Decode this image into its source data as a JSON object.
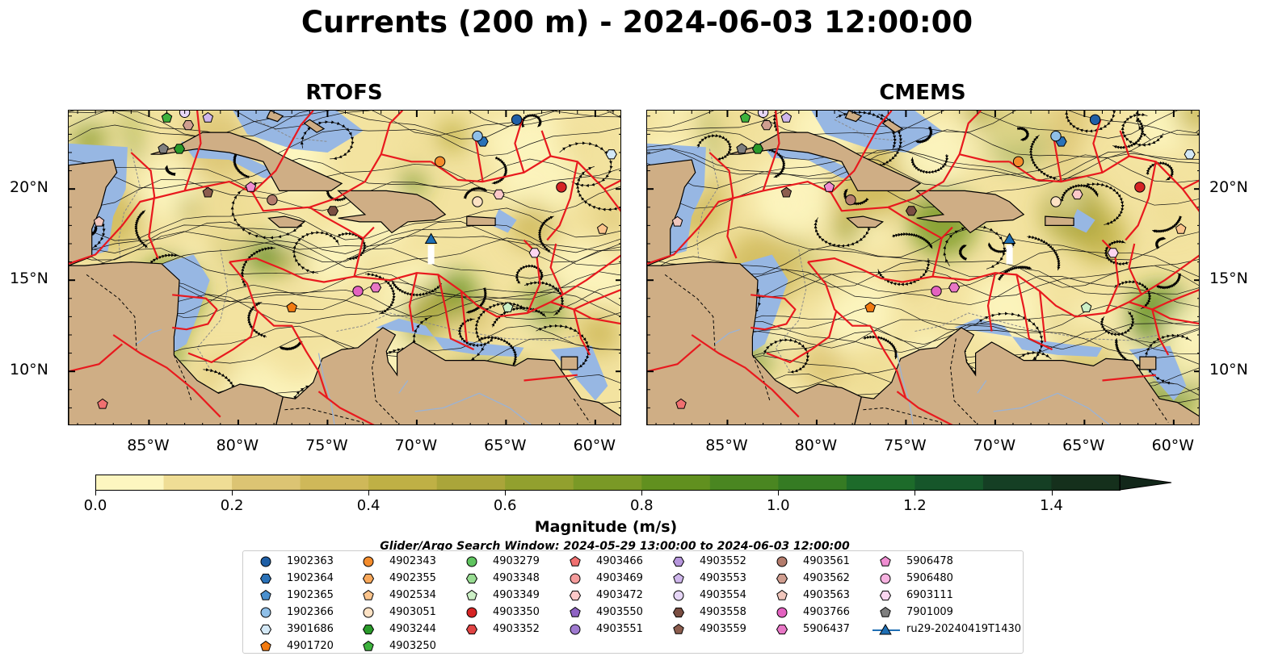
{
  "title": "Currents (200 m) - 2024-06-03 12:00:00",
  "panels": [
    {
      "title": "RTOFS"
    },
    {
      "title": "CMEMS"
    }
  ],
  "axes": {
    "lon_labels": [
      "85°W",
      "80°W",
      "75°W",
      "70°W",
      "65°W",
      "60°W"
    ],
    "lon_values": [
      -85,
      -80,
      -75,
      -70,
      -65,
      -60
    ],
    "lat_labels": [
      "20°N",
      "15°N",
      "10°N"
    ],
    "lat_values": [
      20,
      15,
      10
    ],
    "lon_range": [
      -89.5,
      -58.5
    ],
    "lat_range": [
      7,
      24.3
    ]
  },
  "colorbar": {
    "label": "Magnitude (m/s)",
    "tick_labels": [
      "0.0",
      "0.2",
      "0.4",
      "0.6",
      "0.8",
      "1.0",
      "1.2",
      "1.4"
    ],
    "tick_values": [
      0.0,
      0.2,
      0.4,
      0.6,
      0.8,
      1.0,
      1.2,
      1.4
    ],
    "step": 0.1,
    "max": 1.5,
    "extend": "max",
    "colors": [
      "#fdf6c0",
      "#efdd95",
      "#dcc473",
      "#cfb859",
      "#bfb045",
      "#aaa53a",
      "#92a02e",
      "#7a9926",
      "#61901f",
      "#4a8621",
      "#357b23",
      "#1d6b2a",
      "#16562a",
      "#153f24",
      "#15301c"
    ]
  },
  "search_window": "Glider/Argo Search Window: 2024-05-29 13:00:00 to 2024-06-03 12:00:00",
  "legend": {
    "columns": [
      [
        {
          "label": "1902363",
          "marker": "circle",
          "color": "#1f5fa6"
        },
        {
          "label": "1902364",
          "marker": "hexagon",
          "color": "#2a72b8"
        },
        {
          "label": "1902365",
          "marker": "pentagon",
          "color": "#4a90cf"
        },
        {
          "label": "1902366",
          "marker": "circle",
          "color": "#8fbfe8"
        },
        {
          "label": "3901686",
          "marker": "hexagon",
          "color": "#d3e8f6"
        },
        {
          "label": "4901720",
          "marker": "pentagon",
          "color": "#f27a10"
        }
      ],
      [
        {
          "label": "4902343",
          "marker": "circle",
          "color": "#f48c2c"
        },
        {
          "label": "4902355",
          "marker": "hexagon",
          "color": "#f9a85a"
        },
        {
          "label": "4902534",
          "marker": "pentagon",
          "color": "#fbc48c"
        },
        {
          "label": "4903051",
          "marker": "circle",
          "color": "#fde2c4"
        },
        {
          "label": "4903244",
          "marker": "hexagon",
          "color": "#2a9a2a"
        },
        {
          "label": "4903250",
          "marker": "pentagon",
          "color": "#3db23d"
        }
      ],
      [
        {
          "label": "4903279",
          "marker": "circle",
          "color": "#5fc45f"
        },
        {
          "label": "4903348",
          "marker": "hexagon",
          "color": "#98dc92"
        },
        {
          "label": "4903349",
          "marker": "pentagon",
          "color": "#ccf0c6"
        },
        {
          "label": "4903350",
          "marker": "circle",
          "color": "#d62424"
        },
        {
          "label": "4903352",
          "marker": "hexagon",
          "color": "#e04444"
        }
      ],
      [
        {
          "label": "4903466",
          "marker": "pentagon",
          "color": "#f07070"
        },
        {
          "label": "4903469",
          "marker": "circle",
          "color": "#f59c9c"
        },
        {
          "label": "4903472",
          "marker": "hexagon",
          "color": "#fcc8c8"
        },
        {
          "label": "4903550",
          "marker": "pentagon",
          "color": "#8f63c4"
        },
        {
          "label": "4903551",
          "marker": "circle",
          "color": "#9f7ad0"
        }
      ],
      [
        {
          "label": "4903552",
          "marker": "hexagon",
          "color": "#b696dc"
        },
        {
          "label": "4903553",
          "marker": "pentagon",
          "color": "#cfb6ec"
        },
        {
          "label": "4903554",
          "marker": "circle",
          "color": "#e6d6f6"
        },
        {
          "label": "4903558",
          "marker": "hexagon",
          "color": "#7a4e42"
        },
        {
          "label": "4903559",
          "marker": "pentagon",
          "color": "#8c5d4e"
        }
      ],
      [
        {
          "label": "4903561",
          "marker": "circle",
          "color": "#b47c6c"
        },
        {
          "label": "4903562",
          "marker": "hexagon",
          "color": "#d09e90"
        },
        {
          "label": "4903563",
          "marker": "pentagon",
          "color": "#f0c6bc"
        },
        {
          "label": "4903766",
          "marker": "circle",
          "color": "#e362c0"
        },
        {
          "label": "5906437",
          "marker": "hexagon",
          "color": "#e877c6"
        }
      ],
      [
        {
          "label": "5906478",
          "marker": "pentagon",
          "color": "#f08ed2"
        },
        {
          "label": "5906480",
          "marker": "circle",
          "color": "#f6b2e0"
        },
        {
          "label": "6903111",
          "marker": "hexagon",
          "color": "#fbd6f0"
        },
        {
          "label": "7901009",
          "marker": "pentagon",
          "color": "#7f7f7f"
        },
        {
          "label": "ru29-20240419T1430",
          "marker": "triangle-line",
          "color": "#1f6fb4"
        }
      ]
    ]
  },
  "map_markers": [
    {
      "label": "1902363",
      "lon": -64.4,
      "lat": 23.8
    },
    {
      "label": "1902364",
      "lon": -66.3,
      "lat": 22.6
    },
    {
      "label": "1902366",
      "lon": -66.6,
      "lat": 22.9
    },
    {
      "label": "3901686",
      "lon": -59.1,
      "lat": 21.9
    },
    {
      "label": "4901720",
      "lon": -77.0,
      "lat": 13.5
    },
    {
      "label": "4902343",
      "lon": -68.7,
      "lat": 21.5
    },
    {
      "label": "4902534",
      "lon": -59.6,
      "lat": 17.8
    },
    {
      "label": "4903051",
      "lon": -66.6,
      "lat": 19.3
    },
    {
      "label": "4903244",
      "lon": -83.3,
      "lat": 22.2
    },
    {
      "label": "4903250",
      "lon": -84.0,
      "lat": 23.9
    },
    {
      "label": "4903349",
      "lon": -64.9,
      "lat": 13.5
    },
    {
      "label": "4903350",
      "lon": -61.9,
      "lat": 20.1
    },
    {
      "label": "4903472",
      "lon": -65.4,
      "lat": 19.7
    },
    {
      "label": "4903553",
      "lon": -81.7,
      "lat": 23.9
    },
    {
      "label": "4903554",
      "lon": -83.0,
      "lat": 24.2
    },
    {
      "label": "4903558",
      "lon": -74.7,
      "lat": 18.8
    },
    {
      "label": "4903559",
      "lon": -81.7,
      "lat": 19.8
    },
    {
      "label": "4903561",
      "lon": -78.1,
      "lat": 19.4
    },
    {
      "label": "4903562",
      "lon": -82.8,
      "lat": 23.5
    },
    {
      "label": "4903563",
      "lon": -87.8,
      "lat": 18.2
    },
    {
      "label": "4903766",
      "lon": -73.3,
      "lat": 14.4
    },
    {
      "label": "5906437",
      "lon": -72.3,
      "lat": 14.6
    },
    {
      "label": "5906478",
      "lon": -79.3,
      "lat": 20.1
    },
    {
      "label": "6903111",
      "lon": -63.4,
      "lat": 16.5
    },
    {
      "label": "4903466",
      "lon": -87.6,
      "lat": 8.2
    },
    {
      "label": "7901009",
      "lon": -84.2,
      "lat": 22.2
    },
    {
      "label": "ru29-20240419T1430",
      "lon": -69.2,
      "lat": 17.2
    }
  ]
}
